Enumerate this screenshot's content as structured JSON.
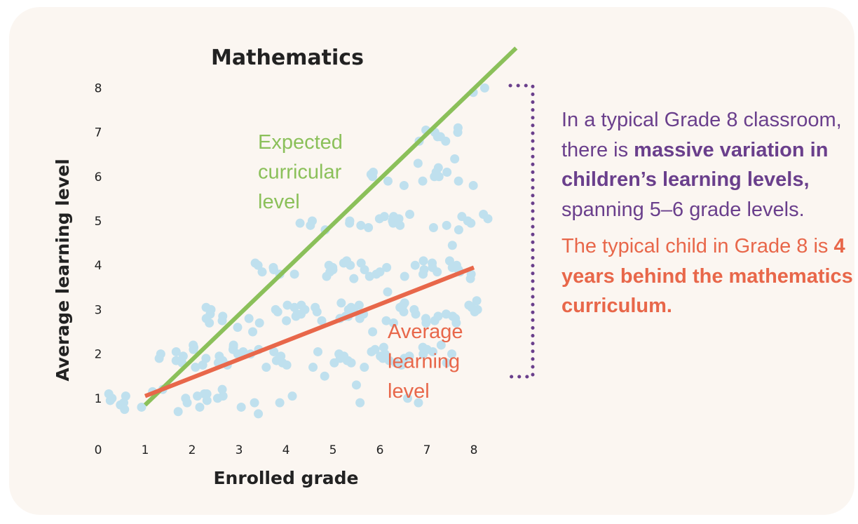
{
  "chart_data": {
    "type": "scatter",
    "title": "Mathematics",
    "xlabel": "Enrolled grade",
    "ylabel": "Average learning level",
    "xlim": [
      0,
      8.5
    ],
    "ylim": [
      0,
      8.5
    ],
    "x_ticks": [
      "0",
      "1",
      "2",
      "3",
      "4",
      "5",
      "6",
      "7",
      "8"
    ],
    "y_ticks": [
      "1",
      "2",
      "3",
      "4",
      "5",
      "6",
      "7",
      "8"
    ],
    "grid": false,
    "points": [
      [
        1,
        0.8
      ],
      [
        1,
        0.85
      ],
      [
        1,
        0.9
      ],
      [
        1,
        0.95
      ],
      [
        1,
        1.0
      ],
      [
        1,
        1.05
      ],
      [
        1,
        1.1
      ],
      [
        1,
        0.75
      ],
      [
        1,
        1.15
      ],
      [
        2,
        0.8
      ],
      [
        2,
        0.9
      ],
      [
        2,
        0.95
      ],
      [
        2,
        1.0
      ],
      [
        2,
        1.05
      ],
      [
        2,
        1.1
      ],
      [
        2,
        1.2
      ],
      [
        2,
        0.7
      ],
      [
        2,
        1.8
      ],
      [
        2,
        1.85
      ],
      [
        2,
        1.9
      ],
      [
        2,
        1.95
      ],
      [
        2,
        2.0
      ],
      [
        2,
        2.05
      ],
      [
        2,
        2.1
      ],
      [
        2,
        2.15
      ],
      [
        2,
        1.75
      ],
      [
        2,
        2.2
      ],
      [
        2,
        1.7
      ],
      [
        3,
        0.8
      ],
      [
        3,
        0.9
      ],
      [
        3,
        1.0
      ],
      [
        3,
        1.1
      ],
      [
        3,
        1.2
      ],
      [
        3,
        1.05
      ],
      [
        3,
        1.8
      ],
      [
        3,
        1.85
      ],
      [
        3,
        1.9
      ],
      [
        3,
        1.95
      ],
      [
        3,
        2.0
      ],
      [
        3,
        2.05
      ],
      [
        3,
        2.1
      ],
      [
        3,
        2.15
      ],
      [
        3,
        1.75
      ],
      [
        3,
        2.2
      ],
      [
        3,
        2.6
      ],
      [
        3,
        2.7
      ],
      [
        3,
        2.8
      ],
      [
        3,
        2.9
      ],
      [
        3,
        3.0
      ],
      [
        3,
        3.05
      ],
      [
        3,
        2.75
      ],
      [
        3,
        2.85
      ],
      [
        4,
        0.65
      ],
      [
        4,
        0.9
      ],
      [
        4,
        1.05
      ],
      [
        4,
        1.75
      ],
      [
        4,
        1.8
      ],
      [
        4,
        1.85
      ],
      [
        4,
        1.9
      ],
      [
        4,
        1.95
      ],
      [
        4,
        2.0
      ],
      [
        4,
        2.05
      ],
      [
        4,
        2.1
      ],
      [
        4,
        1.7
      ],
      [
        4,
        2.5
      ],
      [
        4,
        2.7
      ],
      [
        4,
        2.8
      ],
      [
        4,
        2.85
      ],
      [
        4,
        2.9
      ],
      [
        4,
        2.95
      ],
      [
        4,
        3.0
      ],
      [
        4,
        3.05
      ],
      [
        4,
        3.1
      ],
      [
        4,
        2.75
      ],
      [
        4,
        3.8
      ],
      [
        4,
        3.85
      ],
      [
        4,
        3.9
      ],
      [
        4,
        3.95
      ],
      [
        4,
        4.0
      ],
      [
        4,
        4.05
      ],
      [
        5,
        1.5
      ],
      [
        5,
        1.7
      ],
      [
        5,
        1.8
      ],
      [
        5,
        1.85
      ],
      [
        5,
        1.9
      ],
      [
        5,
        1.95
      ],
      [
        5,
        2.0
      ],
      [
        5,
        2.05
      ],
      [
        5,
        2.8
      ],
      [
        5,
        2.85
      ],
      [
        5,
        2.9
      ],
      [
        5,
        2.95
      ],
      [
        5,
        3.0
      ],
      [
        5,
        3.05
      ],
      [
        5,
        3.1
      ],
      [
        5,
        2.75
      ],
      [
        5,
        3.8
      ],
      [
        5,
        3.85
      ],
      [
        5,
        3.9
      ],
      [
        5,
        3.95
      ],
      [
        5,
        4.0
      ],
      [
        5,
        4.05
      ],
      [
        5,
        3.75
      ],
      [
        5,
        4.8
      ],
      [
        5,
        4.9
      ],
      [
        5,
        4.95
      ],
      [
        5,
        5.0
      ],
      [
        6,
        0.9
      ],
      [
        6,
        1.3
      ],
      [
        6,
        1.7
      ],
      [
        6,
        1.8
      ],
      [
        6,
        1.85
      ],
      [
        6,
        1.9
      ],
      [
        6,
        1.95
      ],
      [
        6,
        2.0
      ],
      [
        6,
        2.05
      ],
      [
        6,
        2.1
      ],
      [
        6,
        2.15
      ],
      [
        6,
        2.5
      ],
      [
        6,
        2.8
      ],
      [
        6,
        2.85
      ],
      [
        6,
        2.9
      ],
      [
        6,
        2.95
      ],
      [
        6,
        3.0
      ],
      [
        6,
        3.05
      ],
      [
        6,
        3.1
      ],
      [
        6,
        3.15
      ],
      [
        6,
        2.75
      ],
      [
        6,
        2.7
      ],
      [
        6,
        3.4
      ],
      [
        6,
        3.8
      ],
      [
        6,
        3.85
      ],
      [
        6,
        3.9
      ],
      [
        6,
        3.95
      ],
      [
        6,
        4.0
      ],
      [
        6,
        4.05
      ],
      [
        6,
        4.1
      ],
      [
        6,
        3.75
      ],
      [
        6,
        3.7
      ],
      [
        6,
        4.9
      ],
      [
        6,
        4.95
      ],
      [
        6,
        5.0
      ],
      [
        6,
        5.05
      ],
      [
        6,
        5.1
      ],
      [
        6,
        4.85
      ],
      [
        6,
        5.9
      ],
      [
        6,
        6.0
      ],
      [
        6,
        6.05
      ],
      [
        6,
        6.1
      ],
      [
        7,
        0.9
      ],
      [
        7,
        1.0
      ],
      [
        7,
        1.75
      ],
      [
        7,
        1.8
      ],
      [
        7,
        1.85
      ],
      [
        7,
        1.9
      ],
      [
        7,
        1.95
      ],
      [
        7,
        2.0
      ],
      [
        7,
        2.05
      ],
      [
        7,
        2.1
      ],
      [
        7,
        2.15
      ],
      [
        7,
        2.7
      ],
      [
        7,
        2.75
      ],
      [
        7,
        2.8
      ],
      [
        7,
        2.85
      ],
      [
        7,
        2.9
      ],
      [
        7,
        2.95
      ],
      [
        7,
        3.0
      ],
      [
        7,
        3.05
      ],
      [
        7,
        3.1
      ],
      [
        7,
        3.15
      ],
      [
        7,
        3.75
      ],
      [
        7,
        3.8
      ],
      [
        7,
        3.85
      ],
      [
        7,
        3.9
      ],
      [
        7,
        3.95
      ],
      [
        7,
        4.0
      ],
      [
        7,
        4.05
      ],
      [
        7,
        4.1
      ],
      [
        7,
        4.85
      ],
      [
        7,
        4.9
      ],
      [
        7,
        4.95
      ],
      [
        7,
        5.0
      ],
      [
        7,
        5.05
      ],
      [
        7,
        5.1
      ],
      [
        7,
        5.15
      ],
      [
        7,
        5.8
      ],
      [
        7,
        5.9
      ],
      [
        7,
        6.0
      ],
      [
        7,
        6.1
      ],
      [
        7,
        6.3
      ],
      [
        7,
        6.8
      ],
      [
        7,
        6.9
      ],
      [
        7,
        7.0
      ],
      [
        7,
        7.05
      ],
      [
        8,
        1.8
      ],
      [
        8,
        2.0
      ],
      [
        8,
        2.2
      ],
      [
        8,
        2.7
      ],
      [
        8,
        2.8
      ],
      [
        8,
        2.85
      ],
      [
        8,
        2.9
      ],
      [
        8,
        2.95
      ],
      [
        8,
        3.0
      ],
      [
        8,
        3.05
      ],
      [
        8,
        3.1
      ],
      [
        8,
        3.2
      ],
      [
        8,
        3.7
      ],
      [
        8,
        3.8
      ],
      [
        8,
        3.85
      ],
      [
        8,
        3.9
      ],
      [
        8,
        3.95
      ],
      [
        8,
        4.0
      ],
      [
        8,
        4.1
      ],
      [
        8,
        4.45
      ],
      [
        8,
        4.8
      ],
      [
        8,
        4.9
      ],
      [
        8,
        4.95
      ],
      [
        8,
        5.0
      ],
      [
        8,
        5.05
      ],
      [
        8,
        5.1
      ],
      [
        8,
        5.15
      ],
      [
        8,
        5.8
      ],
      [
        8,
        5.9
      ],
      [
        8,
        6.0
      ],
      [
        8,
        6.1
      ],
      [
        8,
        6.2
      ],
      [
        8,
        6.4
      ],
      [
        8,
        6.8
      ],
      [
        8,
        6.9
      ],
      [
        8,
        7.0
      ],
      [
        8,
        7.1
      ],
      [
        8,
        7.9
      ],
      [
        8,
        8.0
      ]
    ],
    "series": [
      {
        "name": "Expected curricular level",
        "x": [
          1,
          8.9
        ],
        "y": [
          0.85,
          8.9
        ],
        "color": "#8bc05a"
      },
      {
        "name": "Average learning level",
        "x": [
          1,
          8
        ],
        "y": [
          1.05,
          3.95
        ],
        "color": "#e8674a"
      }
    ],
    "point_color": "#bfe0ee",
    "series_labels": {
      "expected": [
        "Expected",
        "curricular",
        "level"
      ],
      "average": [
        "Average",
        "learning",
        "level"
      ]
    }
  },
  "annotation": {
    "purple_color": "#6a3f8c",
    "orange_color": "#e8674a",
    "bracket_color": "#6a3f8c",
    "purple_1": "In a typical Grade 8 classroom, there is ",
    "purple_bold": "massive variation in children’s learning levels,",
    "purple_2": " spanning 5–6 grade levels.",
    "orange_1": "The typical child in Grade 8 is ",
    "orange_bold": "4 years behind the mathematics curriculum."
  },
  "colors": {
    "card_background": "#fbf6f1"
  }
}
